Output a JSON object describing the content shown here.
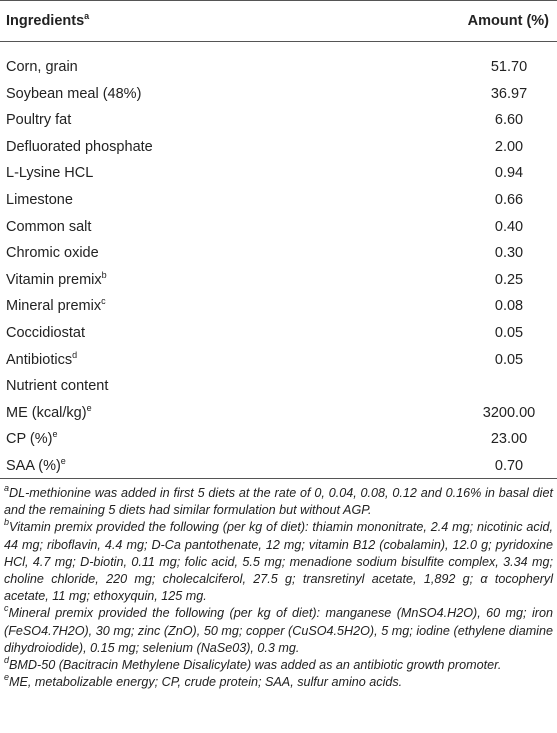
{
  "table": {
    "header": [
      {
        "text": "Ingredients",
        "sup": "a"
      },
      {
        "text": "Amount (%)"
      }
    ],
    "rows": [
      {
        "name": "Corn, grain",
        "amount": "51.70"
      },
      {
        "name": "Soybean meal (48%)",
        "amount": "36.97"
      },
      {
        "name": "Poultry fat",
        "amount": "6.60"
      },
      {
        "name": "Defluorated phosphate",
        "amount": "2.00"
      },
      {
        "name": "L-Lysine HCL",
        "amount": "0.94"
      },
      {
        "name": "Limestone",
        "amount": "0.66"
      },
      {
        "name": "Common salt",
        "amount": "0.40"
      },
      {
        "name": "Chromic oxide",
        "amount": "0.30"
      },
      {
        "name": "Vitamin premix",
        "sup": "b",
        "amount": "0.25"
      },
      {
        "name": "Mineral premix",
        "sup": "c",
        "amount": "0.08"
      },
      {
        "name": "Coccidiostat",
        "amount": "0.05"
      },
      {
        "name": "Antibiotics",
        "sup": "d",
        "amount": "0.05"
      },
      {
        "name": "Nutrient content"
      },
      {
        "name": "ME (kcal/kg)",
        "sup": "e",
        "amount": "3200.00"
      },
      {
        "name": "CP (%)",
        "sup": "e",
        "amount": "23.00"
      },
      {
        "name": "SAA (%)",
        "sup": "e",
        "amount": "0.70"
      }
    ],
    "footnotes": [
      {
        "mark": "a",
        "text": "DL-methionine was added in first 5 diets at the rate of 0, 0.04, 0.08, 0.12 and 0.16% in basal diet and the remaining 5 diets had similar formulation but without AGP."
      },
      {
        "mark": "b",
        "text": "Vitamin premix provided the following (per kg of diet): thiamin mononitrate, 2.4 mg; nicotinic acid, 44 mg; riboflavin, 4.4 mg; D-Ca pantothenate, 12 mg; vitamin B12 (cobalamin), 12.0 g; pyridoxine HCl, 4.7 mg; D-biotin, 0.11 mg; folic acid, 5.5 mg; menadione sodium bisulfite complex, 3.34 mg; choline chloride, 220 mg; cholecalciferol, 27.5 g; transretinyl acetate, 1,892 g; α tocopheryl acetate, 11 mg; ethoxyquin, 125 mg."
      },
      {
        "mark": "c",
        "text": "Mineral premix provided the following (per kg of diet): manganese (MnSO4.H2O), 60 mg; iron (FeSO4.7H2O), 30 mg; zinc (ZnO), 50 mg; copper (CuSO4.5H2O), 5 mg; iodine (ethylene diamine dihydroiodide), 0.15 mg; selenium (NaSe03), 0.3 mg."
      },
      {
        "mark": "d",
        "text": "BMD-50 (Bacitracin Methylene Disalicylate) was added as an antibiotic growth promoter."
      },
      {
        "mark": "e",
        "text": "ME, metabolizable energy; CP, crude protein; SAA, sulfur amino acids."
      }
    ]
  }
}
